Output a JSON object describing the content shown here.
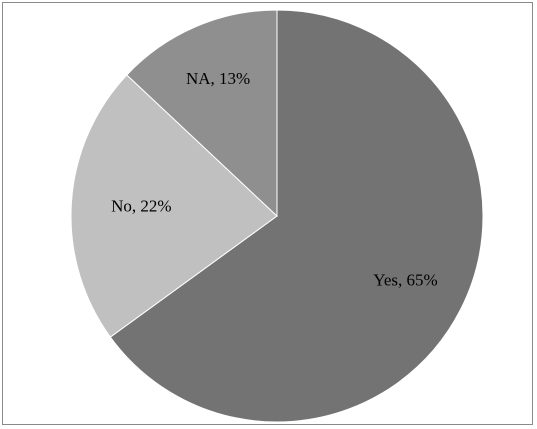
{
  "chart_data": {
    "type": "pie",
    "start": "top",
    "direction": "clockwise",
    "slices": [
      {
        "label": "Yes, 65%",
        "category": "Yes",
        "value": 65,
        "color": "#737373"
      },
      {
        "label": "No, 22%",
        "category": "No",
        "value": 22,
        "color": "#c0c0c0"
      },
      {
        "label": "NA, 13%",
        "category": "NA",
        "value": 13,
        "color": "#8f8f8f"
      }
    ],
    "legend": "none",
    "data_labels": "category and percentage"
  }
}
